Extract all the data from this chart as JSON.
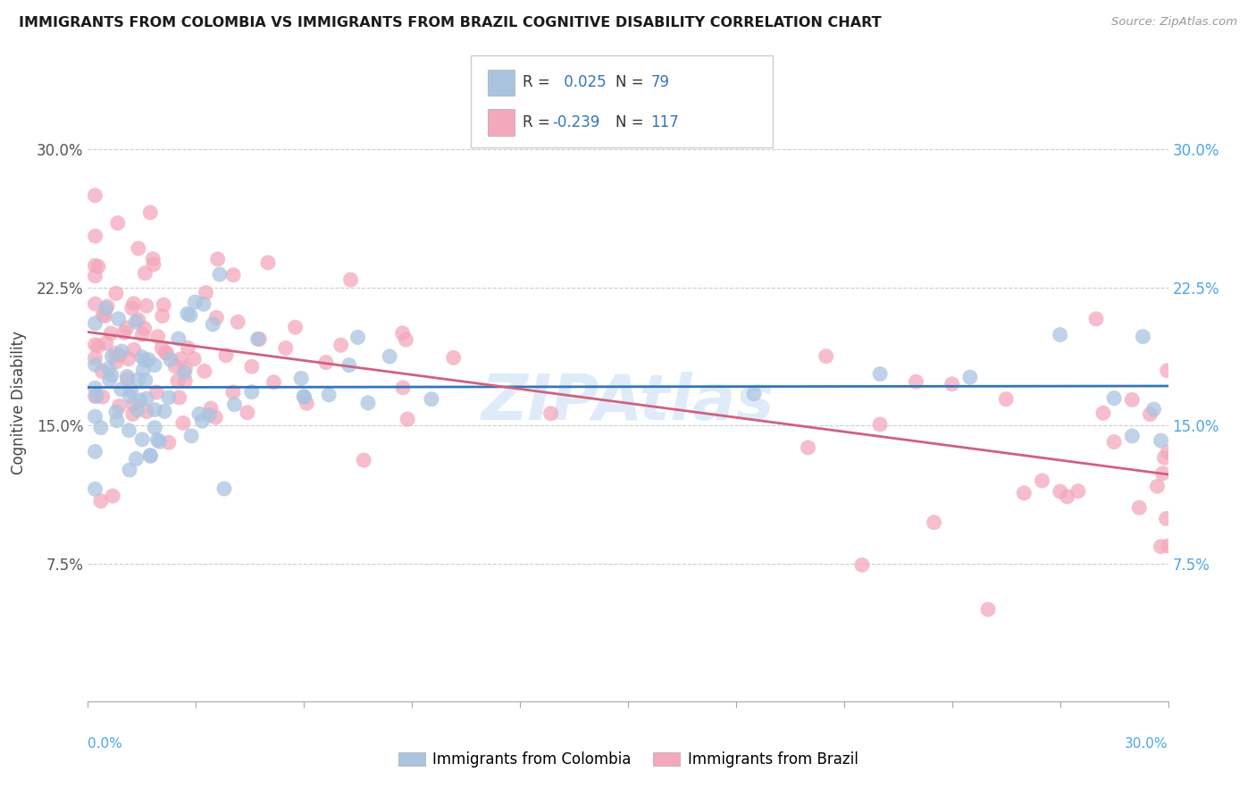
{
  "title": "IMMIGRANTS FROM COLOMBIA VS IMMIGRANTS FROM BRAZIL COGNITIVE DISABILITY CORRELATION CHART",
  "source": "Source: ZipAtlas.com",
  "ylabel": "Cognitive Disability",
  "xlim": [
    0.0,
    30.0
  ],
  "ylim": [
    0.0,
    32.5
  ],
  "yticks": [
    7.5,
    15.0,
    22.5,
    30.0
  ],
  "ytick_labels": [
    "7.5%",
    "15.0%",
    "22.5%",
    "30.0%"
  ],
  "colombia_R": 0.025,
  "colombia_N": 79,
  "brazil_R": -0.239,
  "brazil_N": 117,
  "colombia_color": "#aac4e0",
  "brazil_color": "#f4a8bc",
  "colombia_line_color": "#3575b5",
  "brazil_line_color": "#d06080",
  "legend_label_colombia": "Immigrants from Colombia",
  "legend_label_brazil": "Immigrants from Brazil",
  "watermark": "ZIPAtlas",
  "background_color": "#ffffff",
  "grid_color": "#cccccc"
}
